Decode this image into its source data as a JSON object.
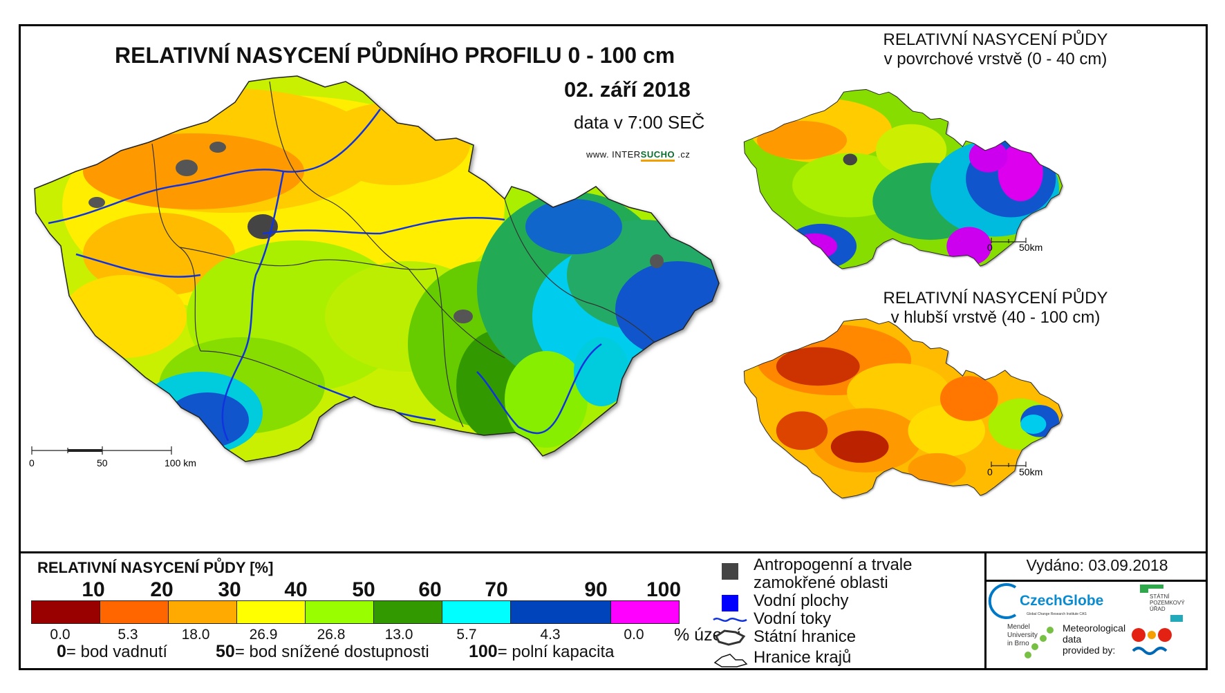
{
  "title": "RELATIVNÍ NASYCENÍ PŮDNÍHO PROFILU 0 - 100 cm",
  "date": "02. září 2018",
  "time": "data v 7:00 SEČ",
  "website": {
    "prefix": "www. INTER",
    "highlight": "SUCHO",
    "suffix": " .cz"
  },
  "inset_top": {
    "line1": "RELATIVNÍ NASYCENÍ PŮDY",
    "line2": "v povrchové vrstvě (0 - 40 cm)",
    "scale0": "0",
    "scale1": "50km"
  },
  "inset_bottom": {
    "line1": "RELATIVNÍ NASYCENÍ PŮDY",
    "line2": "v hlubší vrstvě (40 - 100 cm)",
    "scale0": "0",
    "scale1": "50km"
  },
  "main_scale": {
    "l0": "0",
    "l1": "50",
    "l2": "100 km"
  },
  "legend": {
    "title": "RELATIVNÍ NASYCENÍ PŮDY [%]",
    "ticks": [
      "10",
      "20",
      "30",
      "40",
      "50",
      "60",
      "70",
      "90",
      "100"
    ],
    "classes": [
      {
        "color": "#990000",
        "pct": "0.0"
      },
      {
        "color": "#ff6600",
        "pct": "5.3"
      },
      {
        "color": "#ffaa00",
        "pct": "18.0"
      },
      {
        "color": "#ffff00",
        "pct": "26.9"
      },
      {
        "color": "#99ff00",
        "pct": "26.8"
      },
      {
        "color": "#339900",
        "pct": "13.0"
      },
      {
        "color": "#00ffff",
        "pct": "5.7"
      },
      {
        "color": "#0044bb",
        "pct": "4.3"
      },
      {
        "color": "#ff00ff",
        "pct": "0.0"
      }
    ],
    "pct_unit": "% území",
    "note_0_num": "0",
    "note_0_text": "= bod vadnutí",
    "note_50_num": "50",
    "note_50_text": "= bod snížené dostupnosti",
    "note_100_num": "100",
    "note_100_text": "= polní kapacita"
  },
  "symbols": {
    "anthropogenic_line1": "Antropogenní a trvale",
    "anthropogenic_line2": "zamokřené oblasti",
    "water_bodies": "Vodní plochy",
    "rivers": "Vodní toky",
    "state_border": "Státní hranice",
    "region_border": "Hranice krajů"
  },
  "issued": "Vydáno: 03.09.2018",
  "logos": {
    "czechglobe": "CzechGlobe",
    "czechglobe_sub": "Global Change Research Institute CAS",
    "spu_1": "STÁTNÍ",
    "spu_2": "POZEMKOVÝ",
    "spu_3": "ÚŘAD",
    "mendel_1": "Mendel",
    "mendel_2": "University",
    "mendel_3": "in Brno",
    "met_1": "Meteorological",
    "met_2": "data",
    "met_3": "provided by:"
  }
}
